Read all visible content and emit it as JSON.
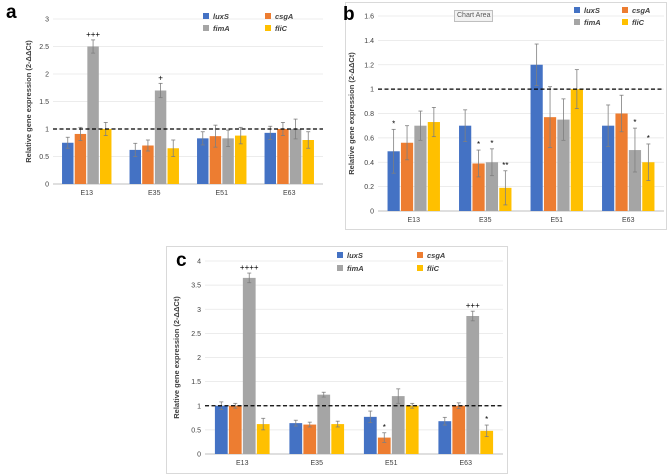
{
  "panels": {
    "a": {
      "label": "a"
    },
    "b": {
      "label": "b",
      "tooltip": "Chart Area"
    },
    "c": {
      "label": "c"
    }
  },
  "colors": {
    "luxS": "#4472c4",
    "csgA": "#ed7d31",
    "fimA": "#a5a5a5",
    "fliC": "#ffc000"
  },
  "chart_data": [
    {
      "id": "a",
      "type": "bar",
      "ylabel": "Relative gene expression (2-ΔΔCt)",
      "ylim": [
        0,
        3
      ],
      "yticks": [
        "0",
        "0.5",
        "1",
        "1.5",
        "2",
        "2.5",
        "3"
      ],
      "reference_line": 1,
      "categories": [
        "E13",
        "E35",
        "E51",
        "E63"
      ],
      "legend": [
        "luxS",
        "csgA",
        "fimA",
        "fliC"
      ],
      "series": [
        {
          "name": "luxS",
          "values": [
            0.75,
            0.62,
            0.83,
            0.93
          ],
          "errors": [
            0.1,
            0.12,
            0.12,
            0.12
          ],
          "marks": [
            "",
            "",
            "",
            ""
          ]
        },
        {
          "name": "csgA",
          "values": [
            0.91,
            0.7,
            0.87,
            1.0
          ],
          "errors": [
            0.12,
            0.1,
            0.2,
            0.12
          ],
          "marks": [
            "",
            "",
            "",
            ""
          ]
        },
        {
          "name": "fimA",
          "values": [
            2.5,
            1.7,
            0.83,
            1.0
          ],
          "errors": [
            0.12,
            0.13,
            0.15,
            0.18
          ],
          "marks": [
            "+++",
            "+",
            "",
            ""
          ]
        },
        {
          "name": "fliC",
          "values": [
            1.0,
            0.65,
            0.88,
            0.8
          ],
          "errors": [
            0.12,
            0.15,
            0.15,
            0.15
          ],
          "marks": [
            "",
            "",
            "",
            ""
          ]
        }
      ]
    },
    {
      "id": "b",
      "type": "bar",
      "ylabel": "Relative gene expression (2-ΔΔCt)",
      "ylim": [
        0,
        1.6
      ],
      "yticks": [
        "0",
        "0.2",
        "0.4",
        "0.6",
        "0.8",
        "1",
        "1.2",
        "1.4",
        "1.6"
      ],
      "reference_line": 1,
      "categories": [
        "E13",
        "E35",
        "E51",
        "E63"
      ],
      "legend": [
        "luxS",
        "csgA",
        "fimA",
        "fliC"
      ],
      "series": [
        {
          "name": "luxS",
          "values": [
            0.49,
            0.7,
            1.2,
            0.7
          ],
          "errors": [
            0.18,
            0.13,
            0.17,
            0.17
          ],
          "marks": [
            "*",
            "",
            "",
            ""
          ]
        },
        {
          "name": "csgA",
          "values": [
            0.56,
            0.39,
            0.77,
            0.8
          ],
          "errors": [
            0.14,
            0.11,
            0.25,
            0.15
          ],
          "marks": [
            "",
            "*",
            "",
            ""
          ]
        },
        {
          "name": "fimA",
          "values": [
            0.7,
            0.4,
            0.75,
            0.5
          ],
          "errors": [
            0.12,
            0.11,
            0.17,
            0.18
          ],
          "marks": [
            "",
            "*",
            "",
            "*"
          ]
        },
        {
          "name": "fliC",
          "values": [
            0.73,
            0.19,
            1.0,
            0.4
          ],
          "errors": [
            0.12,
            0.14,
            0.16,
            0.15
          ],
          "marks": [
            "",
            "**",
            "",
            "*"
          ]
        }
      ]
    },
    {
      "id": "c",
      "type": "bar",
      "ylabel": "Relative gene expression (2-ΔΔCt)",
      "ylim": [
        0,
        4
      ],
      "yticks": [
        "0",
        "0.5",
        "1",
        "1.5",
        "2",
        "2.5",
        "3",
        "3.5",
        "4"
      ],
      "reference_line": 1,
      "categories": [
        "E13",
        "E35",
        "E51",
        "E63"
      ],
      "legend": [
        "luxS",
        "csgA",
        "fimA",
        "fliC"
      ],
      "series": [
        {
          "name": "luxS",
          "values": [
            1.0,
            0.64,
            0.77,
            0.68
          ],
          "errors": [
            0.08,
            0.06,
            0.12,
            0.08
          ],
          "marks": [
            "",
            "",
            "",
            ""
          ]
        },
        {
          "name": "csgA",
          "values": [
            1.0,
            0.61,
            0.34,
            1.0
          ],
          "errors": [
            0.05,
            0.05,
            0.1,
            0.06
          ],
          "marks": [
            "",
            "",
            "*",
            ""
          ]
        },
        {
          "name": "fimA",
          "values": [
            3.65,
            1.23,
            1.2,
            2.86
          ],
          "errors": [
            0.1,
            0.05,
            0.15,
            0.1
          ],
          "marks": [
            "++++",
            "",
            "",
            "+++"
          ]
        },
        {
          "name": "fliC",
          "values": [
            0.62,
            0.62,
            1.0,
            0.48
          ],
          "errors": [
            0.12,
            0.06,
            0.05,
            0.12
          ],
          "marks": [
            "",
            "",
            "",
            "*"
          ]
        }
      ]
    }
  ]
}
